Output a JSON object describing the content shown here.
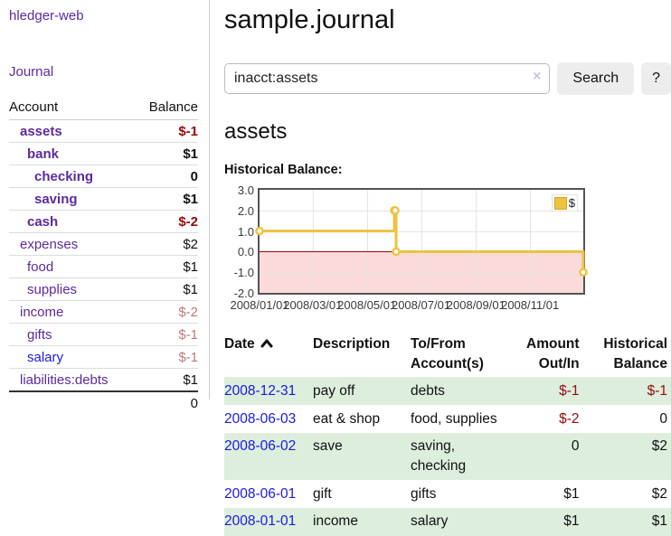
{
  "header": {
    "title": "sample.journal"
  },
  "search": {
    "value": "inacct:assets",
    "clear_icon": "×",
    "button": "Search",
    "help_button": "?"
  },
  "sidebar": {
    "app_link": "hledger-web",
    "journal_link": "Journal",
    "table": {
      "account_header": "Account",
      "balance_header": "Balance",
      "rows": [
        {
          "account": "assets",
          "balance": "$-1",
          "indent": 1,
          "bold": true,
          "balance_style": "negative",
          "link_style": "purple"
        },
        {
          "account": "bank",
          "balance": "$1",
          "indent": 2,
          "bold": true,
          "balance_style": "normal",
          "link_style": "purple"
        },
        {
          "account": "checking",
          "balance": "0",
          "indent": 3,
          "bold": true,
          "balance_style": "normal",
          "link_style": "purple"
        },
        {
          "account": "saving",
          "balance": "$1",
          "indent": 3,
          "bold": true,
          "balance_style": "normal",
          "link_style": "purple"
        },
        {
          "account": "cash",
          "balance": "$-2",
          "indent": 2,
          "bold": true,
          "balance_style": "negative",
          "link_style": "purple"
        },
        {
          "account": "expenses",
          "balance": "$2",
          "indent": 1,
          "bold": false,
          "balance_style": "normal",
          "link_style": "purple"
        },
        {
          "account": "food",
          "balance": "$1",
          "indent": 2,
          "bold": false,
          "balance_style": "normal",
          "link_style": "purple"
        },
        {
          "account": "supplies",
          "balance": "$1",
          "indent": 2,
          "bold": false,
          "balance_style": "normal",
          "link_style": "purple"
        },
        {
          "account": "income",
          "balance": "$-2",
          "indent": 1,
          "bold": false,
          "balance_style": "muted",
          "link_style": "purple"
        },
        {
          "account": "gifts",
          "balance": "$-1",
          "indent": 2,
          "bold": false,
          "balance_style": "muted",
          "link_style": "purple"
        },
        {
          "account": "salary",
          "balance": "$-1",
          "indent": 2,
          "bold": false,
          "balance_style": "muted",
          "link_style": "blue"
        },
        {
          "account": "liabilities:debts",
          "balance": "$1",
          "indent": 1,
          "bold": false,
          "balance_style": "normal",
          "link_style": "purple"
        }
      ],
      "total": "0"
    }
  },
  "account_page": {
    "heading": "assets",
    "chart_label": "Historical Balance:"
  },
  "chart_data": {
    "type": "line",
    "step": true,
    "title": "Historical Balance:",
    "legend": {
      "label": "$",
      "position": "top-right"
    },
    "series": [
      {
        "name": "$",
        "color": "#edc240",
        "points": [
          {
            "date": "2008-01-01",
            "day": 0,
            "value": 1
          },
          {
            "date": "2008-06-01",
            "day": 152,
            "value": 2
          },
          {
            "date": "2008-06-02",
            "day": 153,
            "value": 2
          },
          {
            "date": "2008-06-03",
            "day": 154,
            "value": 0
          },
          {
            "date": "2008-12-31",
            "day": 365,
            "value": -1
          }
        ]
      }
    ],
    "xticks": [
      {
        "label": "2008/01/01",
        "day": 0
      },
      {
        "label": "2008/03/01",
        "day": 60
      },
      {
        "label": "2008/05/01",
        "day": 121
      },
      {
        "label": "2008/07/01",
        "day": 182
      },
      {
        "label": "2008/09/01",
        "day": 244
      },
      {
        "label": "2008/11/01",
        "day": 305
      }
    ],
    "yticks": [
      {
        "label": "3.0",
        "value": 3
      },
      {
        "label": "2.0",
        "value": 2
      },
      {
        "label": "1.0",
        "value": 1
      },
      {
        "label": "0.0",
        "value": 0
      },
      {
        "label": "-1.0",
        "value": -1
      },
      {
        "label": "-2.0",
        "value": -2
      }
    ],
    "ylim": [
      -2,
      3
    ],
    "x_range_days": 365,
    "grid": true,
    "negative_region_color": "#fbdada",
    "zero_line_color": "#a40000"
  },
  "transactions": {
    "columns": [
      {
        "lines": [
          "Date"
        ],
        "align": "left",
        "sortable": true
      },
      {
        "lines": [
          "Description"
        ],
        "align": "left",
        "sortable": false
      },
      {
        "lines": [
          "To/From",
          "Account(s)"
        ],
        "align": "left",
        "sortable": false
      },
      {
        "lines": [
          "Amount",
          "Out/In"
        ],
        "align": "right",
        "sortable": false
      },
      {
        "lines": [
          "Historical",
          "Balance"
        ],
        "align": "right",
        "sortable": false
      }
    ],
    "rows": [
      {
        "date": "2008-12-31",
        "description": "pay off",
        "accounts": [
          "debts"
        ],
        "amount": "$-1",
        "amount_negative": true,
        "balance": "$-1",
        "balance_negative": true,
        "shaded": true
      },
      {
        "date": "2008-06-03",
        "description": "eat & shop",
        "accounts": [
          "food, supplies"
        ],
        "amount": "$-2",
        "amount_negative": true,
        "balance": "0",
        "balance_negative": false,
        "shaded": false
      },
      {
        "date": "2008-06-02",
        "description": "save",
        "accounts": [
          "saving,",
          "checking"
        ],
        "amount": "0",
        "amount_negative": false,
        "balance": "$2",
        "balance_negative": false,
        "shaded": true
      },
      {
        "date": "2008-06-01",
        "description": "gift",
        "accounts": [
          "gifts"
        ],
        "amount": "$1",
        "amount_negative": false,
        "balance": "$2",
        "balance_negative": false,
        "shaded": false
      },
      {
        "date": "2008-01-01",
        "description": "income",
        "accounts": [
          "salary"
        ],
        "amount": "$1",
        "amount_negative": false,
        "balance": "$1",
        "balance_negative": false,
        "shaded": true
      }
    ]
  },
  "colors": {
    "link_purple": "#5c2a9d",
    "link_blue": "#1a1ae0",
    "negative": "#930c0c",
    "muted_negative": "#b97c7c",
    "row_stripe_green": "#ddeedd",
    "chart_line": "#edc240",
    "chart_negative_fill": "#fbdada",
    "chart_zero_line": "#a40000",
    "button_bg": "#ededed"
  }
}
